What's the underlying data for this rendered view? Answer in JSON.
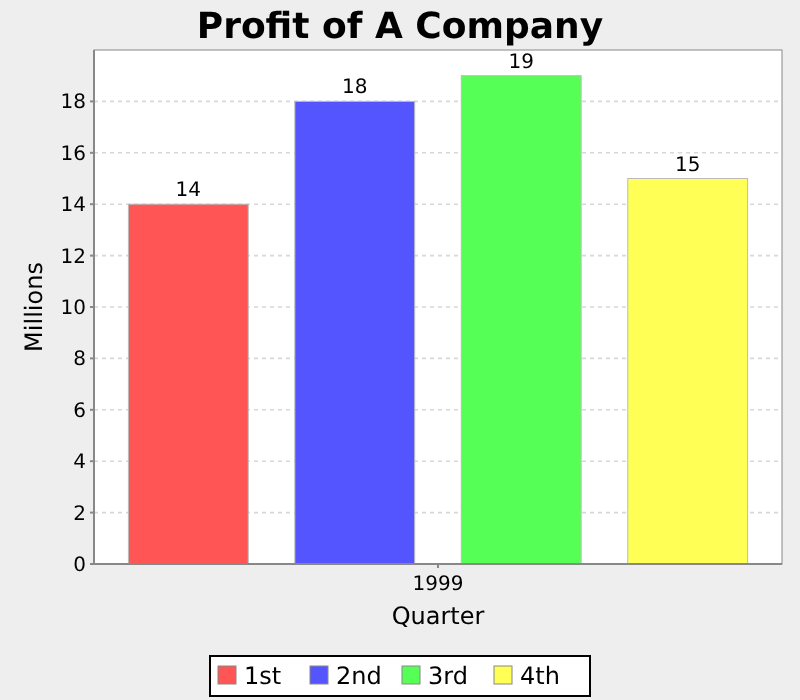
{
  "chart_data": {
    "type": "bar",
    "title": "Profit of A Company",
    "xlabel": "Quarter",
    "ylabel": "Millions",
    "categories": [
      "1999"
    ],
    "series": [
      {
        "name": "1st",
        "color": "#ff5555",
        "values": [
          14
        ]
      },
      {
        "name": "2nd",
        "color": "#5555ff",
        "values": [
          18
        ]
      },
      {
        "name": "3rd",
        "color": "#55ff55",
        "values": [
          19
        ]
      },
      {
        "name": "4th",
        "color": "#ffff55",
        "values": [
          15
        ]
      }
    ],
    "ylim": [
      0,
      20
    ],
    "yticks": [
      0,
      2,
      4,
      6,
      8,
      10,
      12,
      14,
      16,
      18
    ],
    "grid": "y",
    "legend": "bottom",
    "data_labels": true
  }
}
